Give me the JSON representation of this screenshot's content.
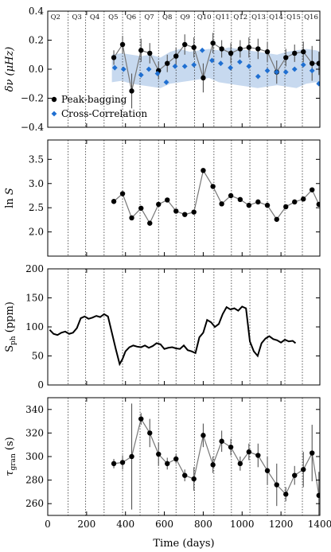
{
  "chart_data": {
    "type": "line",
    "layout": "stacked-panels-shared-x",
    "x_axis": {
      "label": "Time (days)",
      "xlim": [
        0,
        1400
      ],
      "ticks": [
        0,
        200,
        400,
        600,
        800,
        1000,
        1200,
        1400
      ],
      "quarter_boundaries": [
        105,
        195,
        290,
        385,
        475,
        570,
        660,
        755,
        855,
        945,
        1040,
        1130,
        1220,
        1310
      ],
      "quarter_labels": [
        {
          "label": "Q2",
          "x": 40
        },
        {
          "label": "Q3",
          "x": 150
        },
        {
          "label": "Q4",
          "x": 242
        },
        {
          "label": "Q5",
          "x": 337
        },
        {
          "label": "Q6",
          "x": 430
        },
        {
          "label": "Q7",
          "x": 522
        },
        {
          "label": "Q8",
          "x": 615
        },
        {
          "label": "Q9",
          "x": 707
        },
        {
          "label": "Q10",
          "x": 805
        },
        {
          "label": "Q11",
          "x": 900
        },
        {
          "label": "Q12",
          "x": 992
        },
        {
          "label": "Q13",
          "x": 1085
        },
        {
          "label": "Q14",
          "x": 1175
        },
        {
          "label": "Q15",
          "x": 1265
        },
        {
          "label": "Q16",
          "x": 1355
        }
      ]
    },
    "panels": [
      {
        "id": "freq-shift",
        "ylabel": "δν (μHz)",
        "ylim": [
          -0.4,
          0.4
        ],
        "yticks": [
          -0.4,
          -0.2,
          0.0,
          0.2,
          0.4
        ],
        "ytick_labels": [
          "−0.4",
          "−0.2",
          "0.0",
          "0.2",
          "0.4"
        ],
        "band": {
          "x": [
            330,
            380,
            430,
            480,
            530,
            580,
            630,
            680,
            730,
            780,
            830,
            880,
            930,
            980,
            1030,
            1080,
            1130,
            1180,
            1230,
            1280,
            1330,
            1380,
            1400
          ],
          "upper": [
            0.1,
            0.11,
            0.1,
            0.09,
            0.1,
            0.08,
            0.12,
            0.14,
            0.12,
            0.13,
            0.14,
            0.13,
            0.15,
            0.14,
            0.13,
            0.12,
            0.11,
            0.1,
            0.12,
            0.13,
            0.14,
            0.13,
            0.12
          ],
          "lower": [
            -0.09,
            -0.08,
            -0.1,
            -0.11,
            -0.12,
            -0.13,
            -0.1,
            -0.09,
            -0.08,
            -0.07,
            -0.06,
            -0.09,
            -0.1,
            -0.11,
            -0.12,
            -0.13,
            -0.12,
            -0.11,
            -0.12,
            -0.13,
            -0.1,
            -0.09,
            -0.1
          ]
        },
        "series": [
          {
            "name": "Peak-bagging",
            "style": "black-circles-line",
            "x": [
              340,
              385,
              432,
              480,
              525,
              570,
              615,
              660,
              705,
              752,
              800,
              850,
              895,
              942,
              990,
              1035,
              1082,
              1130,
              1178,
              1225,
              1270,
              1315,
              1360,
              1395
            ],
            "y": [
              0.08,
              0.17,
              -0.15,
              0.13,
              0.11,
              -0.01,
              0.04,
              0.09,
              0.17,
              0.15,
              -0.06,
              0.18,
              0.14,
              0.11,
              0.14,
              0.15,
              0.14,
              0.12,
              -0.02,
              0.08,
              0.11,
              0.12,
              0.04,
              0.04
            ],
            "err": [
              0.05,
              0.06,
              0.12,
              0.08,
              0.07,
              0.06,
              0.06,
              0.06,
              0.07,
              0.07,
              0.1,
              0.07,
              0.06,
              0.07,
              0.06,
              0.07,
              0.07,
              0.07,
              0.08,
              0.06,
              0.06,
              0.07,
              0.12,
              0.08
            ]
          },
          {
            "name": "Cross-Correlation",
            "style": "blue-diamonds",
            "x": [
              345,
              390,
              480,
              520,
              565,
              610,
              655,
              705,
              752,
              795,
              845,
              890,
              940,
              988,
              1035,
              1082,
              1130,
              1178,
              1225,
              1270,
              1315,
              1360,
              1395
            ],
            "y": [
              0.01,
              0.0,
              -0.04,
              0.0,
              -0.03,
              -0.09,
              0.02,
              0.02,
              0.03,
              0.13,
              0.06,
              0.04,
              0.01,
              0.05,
              0.02,
              -0.05,
              -0.01,
              -0.02,
              -0.02,
              0.0,
              0.03,
              -0.01,
              -0.1
            ]
          }
        ],
        "legend": {
          "placement": "lower-left",
          "entries": [
            "Peak-bagging",
            "Cross-Correlation"
          ]
        }
      },
      {
        "id": "lnS",
        "ylabel": "ln S",
        "ylim": [
          1.5,
          3.9
        ],
        "yticks": [
          2.0,
          2.5,
          3.0,
          3.5
        ],
        "ytick_labels": [
          "2.0",
          "2.5",
          "3.0",
          "3.5"
        ],
        "series": [
          {
            "name": "",
            "style": "black-circles-line",
            "x": [
              340,
              385,
              432,
              480,
              525,
              570,
              615,
              660,
              705,
              752,
              800,
              850,
              895,
              942,
              990,
              1035,
              1082,
              1130,
              1178,
              1225,
              1270,
              1315,
              1360,
              1395
            ],
            "y": [
              2.63,
              2.79,
              2.29,
              2.49,
              2.18,
              2.57,
              2.66,
              2.43,
              2.36,
              2.41,
              3.27,
              2.94,
              2.58,
              2.75,
              2.67,
              2.55,
              2.62,
              2.55,
              2.26,
              2.52,
              2.62,
              2.68,
              2.87,
              2.57
            ]
          }
        ]
      },
      {
        "id": "sph",
        "ylabel": "S_ph (ppm)",
        "ylim": [
          0,
          200
        ],
        "yticks": [
          0,
          50,
          100,
          150,
          200
        ],
        "ytick_labels": [
          "0",
          "50",
          "100",
          "150",
          "200"
        ],
        "series": [
          {
            "name": "",
            "style": "black-line",
            "x": [
              10,
              30,
              50,
              70,
              90,
              110,
              130,
              150,
              170,
              190,
              210,
              230,
              250,
              270,
              290,
              310,
              330,
              350,
              370,
              385,
              400,
              420,
              440,
              460,
              480,
              500,
              520,
              540,
              560,
              580,
              600,
              620,
              640,
              660,
              680,
              700,
              720,
              740,
              760,
              780,
              800,
              820,
              840,
              860,
              880,
              900,
              920,
              940,
              960,
              980,
              1000,
              1020,
              1040,
              1060,
              1080,
              1100,
              1120,
              1140,
              1160,
              1180,
              1200,
              1220,
              1240,
              1260,
              1275
            ],
            "y": [
              95,
              88,
              86,
              90,
              92,
              88,
              90,
              98,
              115,
              118,
              114,
              116,
              119,
              117,
              122,
              118,
              90,
              62,
              36,
              45,
              58,
              65,
              68,
              66,
              65,
              68,
              64,
              67,
              72,
              70,
              62,
              64,
              65,
              63,
              62,
              68,
              60,
              58,
              55,
              82,
              90,
              112,
              108,
              100,
              105,
              122,
              134,
              130,
              132,
              128,
              135,
              132,
              75,
              58,
              50,
              72,
              80,
              84,
              79,
              77,
              73,
              78,
              75,
              76,
              72
            ]
          }
        ]
      },
      {
        "id": "tau-gran",
        "ylabel": "τ_gran (s)",
        "ylim": [
          250,
          350
        ],
        "yticks": [
          260,
          280,
          300,
          320,
          340
        ],
        "ytick_labels": [
          "260",
          "280",
          "300",
          "320",
          "340"
        ],
        "series": [
          {
            "name": "",
            "style": "black-circles-line",
            "x": [
              340,
              385,
              432,
              480,
              525,
              570,
              615,
              660,
              705,
              752,
              800,
              850,
              895,
              942,
              990,
              1035,
              1082,
              1130,
              1178,
              1225,
              1270,
              1315,
              1360,
              1395
            ],
            "y": [
              294,
              295,
              300,
              332,
              320,
              302,
              294,
              298,
              284,
              281,
              318,
              293,
              313,
              308,
              294,
              304,
              301,
              288,
              276,
              268,
              284,
              289,
              303,
              267
            ],
            "err": [
              4,
              6,
              45,
              5,
              12,
              10,
              5,
              4,
              5,
              10,
              10,
              7,
              9,
              7,
              6,
              7,
              10,
              12,
              18,
              6,
              8,
              15,
              24,
              20
            ]
          }
        ]
      }
    ]
  }
}
